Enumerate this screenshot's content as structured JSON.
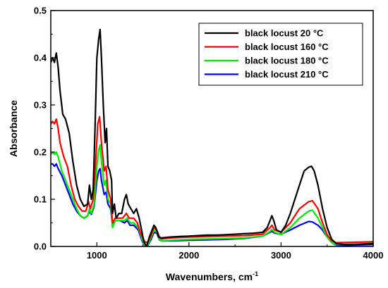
{
  "chart_data": {
    "type": "line",
    "xlabel": "Wavenumbers, cm",
    "xlabel_sup": "-1",
    "ylabel": "Absorbance",
    "xlim": [
      500,
      4000
    ],
    "ylim": [
      0,
      0.5
    ],
    "x_ticks": [
      1000,
      2000,
      3000,
      4000
    ],
    "x_tick_labels": [
      "1000",
      "2000",
      "3000",
      "4000"
    ],
    "y_ticks": [
      0.0,
      0.1,
      0.2,
      0.3,
      0.4,
      0.5
    ],
    "y_tick_labels": [
      "0.0",
      "0.1",
      "0.2",
      "0.3",
      "0.4",
      "0.5"
    ],
    "grid": false,
    "legend_position": "top-right",
    "series": [
      {
        "name": "black locust 20 °C",
        "color": "#000000",
        "points": [
          [
            500,
            0.39
          ],
          [
            520,
            0.4
          ],
          [
            540,
            0.39
          ],
          [
            560,
            0.41
          ],
          [
            580,
            0.38
          ],
          [
            600,
            0.33
          ],
          [
            630,
            0.28
          ],
          [
            660,
            0.27
          ],
          [
            700,
            0.24
          ],
          [
            740,
            0.18
          ],
          [
            780,
            0.13
          ],
          [
            820,
            0.1
          ],
          [
            860,
            0.085
          ],
          [
            900,
            0.09
          ],
          [
            920,
            0.13
          ],
          [
            940,
            0.1
          ],
          [
            960,
            0.12
          ],
          [
            980,
            0.25
          ],
          [
            1000,
            0.4
          ],
          [
            1020,
            0.44
          ],
          [
            1035,
            0.46
          ],
          [
            1050,
            0.4
          ],
          [
            1070,
            0.3
          ],
          [
            1090,
            0.22
          ],
          [
            1105,
            0.25
          ],
          [
            1120,
            0.17
          ],
          [
            1140,
            0.16
          ],
          [
            1160,
            0.14
          ],
          [
            1170,
            0.07
          ],
          [
            1190,
            0.09
          ],
          [
            1210,
            0.06
          ],
          [
            1240,
            0.07
          ],
          [
            1270,
            0.07
          ],
          [
            1300,
            0.1
          ],
          [
            1320,
            0.11
          ],
          [
            1340,
            0.09
          ],
          [
            1370,
            0.08
          ],
          [
            1400,
            0.07
          ],
          [
            1430,
            0.08
          ],
          [
            1460,
            0.06
          ],
          [
            1490,
            0.03
          ],
          [
            1510,
            0.01
          ],
          [
            1540,
            0.0
          ],
          [
            1570,
            0.02
          ],
          [
            1600,
            0.035
          ],
          [
            1620,
            0.045
          ],
          [
            1640,
            0.04
          ],
          [
            1670,
            0.02
          ],
          [
            1700,
            0.018
          ],
          [
            1800,
            0.02
          ],
          [
            1900,
            0.021
          ],
          [
            2000,
            0.022
          ],
          [
            2100,
            0.023
          ],
          [
            2200,
            0.024
          ],
          [
            2300,
            0.024
          ],
          [
            2400,
            0.025
          ],
          [
            2500,
            0.026
          ],
          [
            2600,
            0.027
          ],
          [
            2700,
            0.028
          ],
          [
            2800,
            0.03
          ],
          [
            2850,
            0.04
          ],
          [
            2880,
            0.055
          ],
          [
            2900,
            0.065
          ],
          [
            2920,
            0.055
          ],
          [
            2950,
            0.035
          ],
          [
            3000,
            0.03
          ],
          [
            3050,
            0.045
          ],
          [
            3100,
            0.07
          ],
          [
            3150,
            0.1
          ],
          [
            3200,
            0.13
          ],
          [
            3250,
            0.16
          ],
          [
            3300,
            0.168
          ],
          [
            3330,
            0.17
          ],
          [
            3360,
            0.16
          ],
          [
            3400,
            0.13
          ],
          [
            3450,
            0.08
          ],
          [
            3500,
            0.04
          ],
          [
            3550,
            0.015
          ],
          [
            3600,
            0.006
          ],
          [
            3700,
            0.004
          ],
          [
            3800,
            0.004
          ],
          [
            3900,
            0.005
          ],
          [
            4000,
            0.006
          ]
        ]
      },
      {
        "name": "black locust 160 °C",
        "color": "#ff0000",
        "points": [
          [
            500,
            0.26
          ],
          [
            520,
            0.265
          ],
          [
            540,
            0.26
          ],
          [
            560,
            0.27
          ],
          [
            580,
            0.25
          ],
          [
            600,
            0.22
          ],
          [
            640,
            0.19
          ],
          [
            680,
            0.17
          ],
          [
            720,
            0.13
          ],
          [
            760,
            0.1
          ],
          [
            800,
            0.085
          ],
          [
            840,
            0.075
          ],
          [
            880,
            0.075
          ],
          [
            910,
            0.095
          ],
          [
            930,
            0.08
          ],
          [
            960,
            0.1
          ],
          [
            990,
            0.19
          ],
          [
            1010,
            0.26
          ],
          [
            1030,
            0.275
          ],
          [
            1050,
            0.22
          ],
          [
            1080,
            0.16
          ],
          [
            1100,
            0.17
          ],
          [
            1120,
            0.12
          ],
          [
            1150,
            0.1
          ],
          [
            1170,
            0.05
          ],
          [
            1200,
            0.06
          ],
          [
            1240,
            0.06
          ],
          [
            1280,
            0.06
          ],
          [
            1320,
            0.07
          ],
          [
            1350,
            0.06
          ],
          [
            1400,
            0.06
          ],
          [
            1440,
            0.05
          ],
          [
            1480,
            0.025
          ],
          [
            1520,
            0.01
          ],
          [
            1550,
            0.008
          ],
          [
            1580,
            0.02
          ],
          [
            1620,
            0.04
          ],
          [
            1650,
            0.035
          ],
          [
            1680,
            0.02
          ],
          [
            1700,
            0.016
          ],
          [
            1800,
            0.018
          ],
          [
            1900,
            0.019
          ],
          [
            2000,
            0.02
          ],
          [
            2200,
            0.021
          ],
          [
            2400,
            0.022
          ],
          [
            2600,
            0.023
          ],
          [
            2800,
            0.026
          ],
          [
            2880,
            0.04
          ],
          [
            2900,
            0.045
          ],
          [
            2930,
            0.035
          ],
          [
            3000,
            0.03
          ],
          [
            3100,
            0.05
          ],
          [
            3200,
            0.08
          ],
          [
            3300,
            0.095
          ],
          [
            3340,
            0.097
          ],
          [
            3400,
            0.08
          ],
          [
            3450,
            0.05
          ],
          [
            3500,
            0.025
          ],
          [
            3550,
            0.012
          ],
          [
            3600,
            0.008
          ],
          [
            3800,
            0.009
          ],
          [
            4000,
            0.01
          ]
        ]
      },
      {
        "name": "black locust 180 °C",
        "color": "#00ee00",
        "points": [
          [
            500,
            0.195
          ],
          [
            520,
            0.2
          ],
          [
            540,
            0.195
          ],
          [
            560,
            0.2
          ],
          [
            580,
            0.19
          ],
          [
            620,
            0.16
          ],
          [
            660,
            0.14
          ],
          [
            700,
            0.12
          ],
          [
            740,
            0.1
          ],
          [
            780,
            0.08
          ],
          [
            820,
            0.065
          ],
          [
            860,
            0.06
          ],
          [
            900,
            0.065
          ],
          [
            920,
            0.08
          ],
          [
            940,
            0.07
          ],
          [
            970,
            0.09
          ],
          [
            1000,
            0.17
          ],
          [
            1020,
            0.205
          ],
          [
            1035,
            0.215
          ],
          [
            1050,
            0.18
          ],
          [
            1080,
            0.13
          ],
          [
            1100,
            0.14
          ],
          [
            1120,
            0.1
          ],
          [
            1150,
            0.09
          ],
          [
            1170,
            0.04
          ],
          [
            1200,
            0.055
          ],
          [
            1250,
            0.055
          ],
          [
            1300,
            0.055
          ],
          [
            1330,
            0.06
          ],
          [
            1360,
            0.05
          ],
          [
            1400,
            0.05
          ],
          [
            1450,
            0.04
          ],
          [
            1490,
            0.015
          ],
          [
            1520,
            0.003
          ],
          [
            1550,
            0.002
          ],
          [
            1590,
            0.02
          ],
          [
            1620,
            0.035
          ],
          [
            1650,
            0.03
          ],
          [
            1680,
            0.015
          ],
          [
            1700,
            0.012
          ],
          [
            1800,
            0.013
          ],
          [
            2000,
            0.015
          ],
          [
            2200,
            0.016
          ],
          [
            2400,
            0.017
          ],
          [
            2600,
            0.018
          ],
          [
            2800,
            0.022
          ],
          [
            2880,
            0.032
          ],
          [
            2900,
            0.036
          ],
          [
            2930,
            0.03
          ],
          [
            3000,
            0.025
          ],
          [
            3100,
            0.04
          ],
          [
            3200,
            0.06
          ],
          [
            3300,
            0.075
          ],
          [
            3340,
            0.077
          ],
          [
            3400,
            0.06
          ],
          [
            3450,
            0.04
          ],
          [
            3500,
            0.02
          ],
          [
            3550,
            0.008
          ],
          [
            3600,
            0.004
          ],
          [
            3800,
            0.005
          ],
          [
            4000,
            0.007
          ]
        ]
      },
      {
        "name": "black locust 210 °C",
        "color": "#0000ff",
        "points": [
          [
            500,
            0.175
          ],
          [
            520,
            0.175
          ],
          [
            540,
            0.17
          ],
          [
            560,
            0.175
          ],
          [
            580,
            0.165
          ],
          [
            620,
            0.15
          ],
          [
            660,
            0.13
          ],
          [
            700,
            0.11
          ],
          [
            740,
            0.09
          ],
          [
            780,
            0.075
          ],
          [
            820,
            0.065
          ],
          [
            860,
            0.06
          ],
          [
            900,
            0.065
          ],
          [
            920,
            0.075
          ],
          [
            940,
            0.068
          ],
          [
            970,
            0.085
          ],
          [
            1000,
            0.14
          ],
          [
            1020,
            0.16
          ],
          [
            1035,
            0.165
          ],
          [
            1050,
            0.14
          ],
          [
            1080,
            0.11
          ],
          [
            1100,
            0.115
          ],
          [
            1120,
            0.09
          ],
          [
            1150,
            0.08
          ],
          [
            1170,
            0.045
          ],
          [
            1200,
            0.055
          ],
          [
            1250,
            0.055
          ],
          [
            1300,
            0.05
          ],
          [
            1330,
            0.055
          ],
          [
            1360,
            0.045
          ],
          [
            1400,
            0.045
          ],
          [
            1450,
            0.035
          ],
          [
            1490,
            0.012
          ],
          [
            1520,
            0.002
          ],
          [
            1550,
            0.001
          ],
          [
            1590,
            0.015
          ],
          [
            1620,
            0.03
          ],
          [
            1650,
            0.028
          ],
          [
            1680,
            0.014
          ],
          [
            1700,
            0.012
          ],
          [
            1800,
            0.012
          ],
          [
            2000,
            0.013
          ],
          [
            2200,
            0.014
          ],
          [
            2400,
            0.015
          ],
          [
            2600,
            0.017
          ],
          [
            2800,
            0.022
          ],
          [
            2880,
            0.03
          ],
          [
            2900,
            0.032
          ],
          [
            2930,
            0.028
          ],
          [
            3000,
            0.026
          ],
          [
            3100,
            0.035
          ],
          [
            3200,
            0.045
          ],
          [
            3300,
            0.053
          ],
          [
            3340,
            0.052
          ],
          [
            3400,
            0.045
          ],
          [
            3450,
            0.035
          ],
          [
            3500,
            0.02
          ],
          [
            3550,
            0.008
          ],
          [
            3600,
            0.003
          ],
          [
            3700,
            0.002
          ],
          [
            3800,
            0.003
          ],
          [
            4000,
            0.004
          ]
        ]
      }
    ]
  }
}
